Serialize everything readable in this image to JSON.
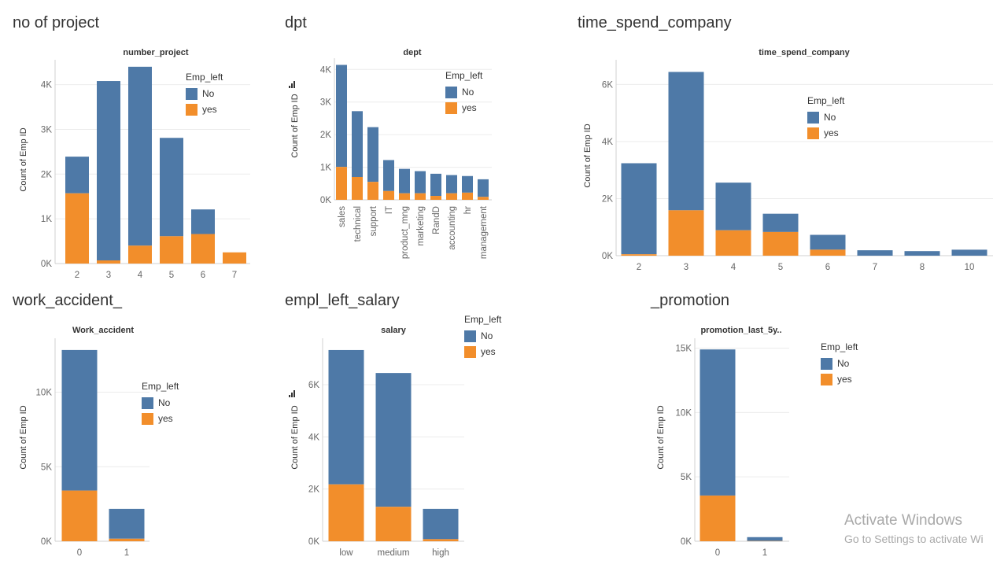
{
  "colors": {
    "no": "#4e79a7",
    "yes": "#f28e2b",
    "grid": "#ececec",
    "axis": "#d0d0d0"
  },
  "legend": {
    "title": "Emp_left",
    "items": [
      "No",
      "yes"
    ]
  },
  "watermark": {
    "line1": "Activate Windows",
    "line2": "Go to Settings to activate Wi"
  },
  "chart_data": [
    {
      "id": "no-of-project",
      "type": "bar",
      "stacked": true,
      "sheet_title": "no of project",
      "title": "number_project",
      "ylabel": "Count of Emp ID",
      "ylim": [
        0,
        4450
      ],
      "yticks": [
        0,
        1000,
        2000,
        3000,
        4000
      ],
      "ytick_labels": [
        "0K",
        "1K",
        "2K",
        "3K",
        "4K"
      ],
      "categories": [
        "2",
        "3",
        "4",
        "5",
        "6",
        "7"
      ],
      "series": [
        {
          "name": "No",
          "values": [
            820,
            4010,
            4000,
            2200,
            550,
            0
          ]
        },
        {
          "name": "yes",
          "values": [
            1570,
            70,
            400,
            610,
            660,
            250
          ]
        }
      ]
    },
    {
      "id": "dpt",
      "type": "bar",
      "stacked": true,
      "sheet_title": "dpt",
      "title": "dept",
      "ylabel": "Count of Emp ID",
      "ylim": [
        0,
        4200
      ],
      "yticks": [
        0,
        1000,
        2000,
        3000,
        4000
      ],
      "ytick_labels": [
        "0K",
        "1K",
        "2K",
        "3K",
        "4K"
      ],
      "categories": [
        "sales",
        "technical",
        "support",
        "IT",
        "product_mng",
        "marketing",
        "RandD",
        "accounting",
        "hr",
        "management"
      ],
      "series": [
        {
          "name": "No",
          "values": [
            3130,
            2020,
            1680,
            950,
            750,
            680,
            680,
            560,
            510,
            540
          ]
        },
        {
          "name": "yes",
          "values": [
            1010,
            700,
            550,
            270,
            200,
            200,
            120,
            200,
            220,
            90
          ]
        }
      ]
    },
    {
      "id": "time-spend-company",
      "type": "bar",
      "stacked": true,
      "sheet_title": "time_spend_company",
      "title": "time_spend_company",
      "ylabel": "Count of Emp ID",
      "ylim": [
        0,
        6700
      ],
      "yticks": [
        0,
        2000,
        4000,
        6000
      ],
      "ytick_labels": [
        "0K",
        "2K",
        "4K",
        "6K"
      ],
      "categories": [
        "2",
        "3",
        "4",
        "5",
        "6",
        "7",
        "8",
        "10"
      ],
      "series": [
        {
          "name": "No",
          "values": [
            3190,
            4850,
            1670,
            640,
            520,
            190,
            160,
            210
          ]
        },
        {
          "name": "yes",
          "values": [
            50,
            1590,
            890,
            830,
            210,
            0,
            0,
            0
          ]
        }
      ]
    },
    {
      "id": "work-accident",
      "type": "bar",
      "stacked": true,
      "sheet_title": "work_accident_",
      "title": "Work_accident",
      "ylabel": "Count of Emp ID",
      "ylim": [
        0,
        13300
      ],
      "yticks": [
        0,
        5000,
        10000
      ],
      "ytick_labels": [
        "0K",
        "5K",
        "10K"
      ],
      "categories": [
        "0",
        "1"
      ],
      "series": [
        {
          "name": "No",
          "values": [
            9430,
            2000
          ]
        },
        {
          "name": "yes",
          "values": [
            3400,
            170
          ]
        }
      ]
    },
    {
      "id": "empl-left-salary",
      "type": "bar",
      "stacked": true,
      "sheet_title": "empl_left_salary",
      "title": "salary",
      "ylabel": "Count of Emp ID",
      "ylim": [
        0,
        7600
      ],
      "yticks": [
        0,
        2000,
        4000,
        6000
      ],
      "ytick_labels": [
        "0K",
        "2K",
        "4K",
        "6K"
      ],
      "categories": [
        "low",
        "medium",
        "high"
      ],
      "series": [
        {
          "name": "No",
          "values": [
            5150,
            5130,
            1160
          ]
        },
        {
          "name": "yes",
          "values": [
            2180,
            1320,
            80
          ]
        }
      ]
    },
    {
      "id": "promotion",
      "type": "bar",
      "stacked": true,
      "sheet_title": "_promotion",
      "title": "promotion_last_5y..",
      "ylabel": "Count of Emp ID",
      "ylim": [
        0,
        15400
      ],
      "yticks": [
        0,
        5000,
        10000,
        15000
      ],
      "ytick_labels": [
        "0K",
        "5K",
        "10K",
        "15K"
      ],
      "categories": [
        "0",
        "1"
      ],
      "series": [
        {
          "name": "No",
          "values": [
            11350,
            300
          ]
        },
        {
          "name": "yes",
          "values": [
            3550,
            20
          ]
        }
      ]
    }
  ]
}
